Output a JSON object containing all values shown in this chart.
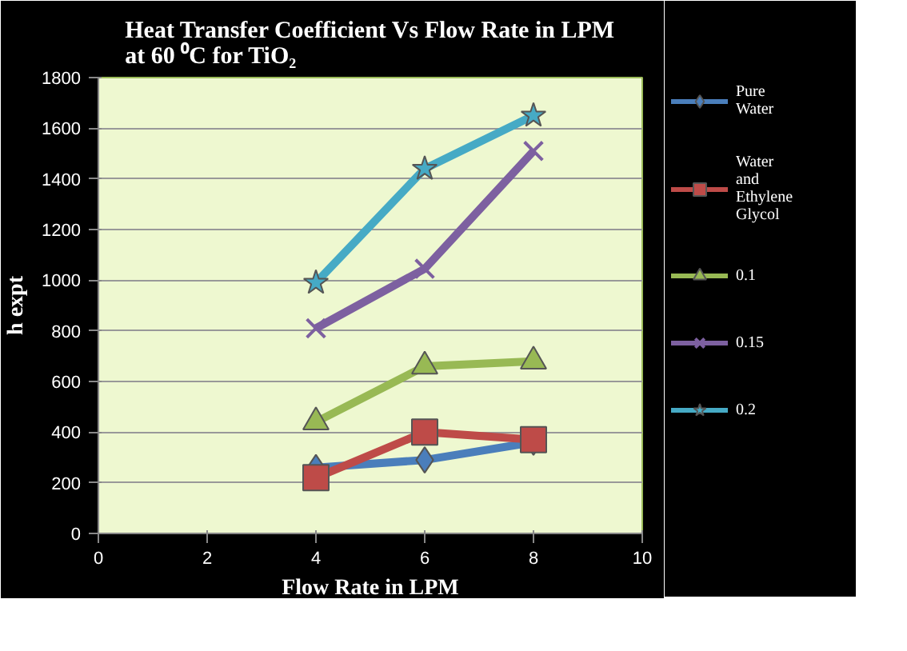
{
  "chart_data": {
    "type": "line",
    "title": "Heat Transfer Coefficient Vs Flow Rate in LPM at 60 ⁰C for TiO₂",
    "xlabel": "Flow Rate in LPM",
    "ylabel": "h expt",
    "x": [
      4,
      6,
      8
    ],
    "xlim": [
      0,
      10
    ],
    "xticks": [
      0,
      2,
      4,
      6,
      8,
      10
    ],
    "ylim": [
      0,
      1800
    ],
    "yticks": [
      0,
      200,
      400,
      600,
      800,
      1000,
      1200,
      1400,
      1600,
      1800
    ],
    "grid": "y",
    "legend": "right",
    "line_style": "solid",
    "series": [
      {
        "name": "Pure Water",
        "color": "#4a7ebb",
        "marker": "diamond",
        "values": [
          260,
          290,
          360
        ]
      },
      {
        "name": "Water and Ethylene Glycol",
        "color": "#be4b48",
        "marker": "square",
        "values": [
          220,
          400,
          370
        ]
      },
      {
        "name": "0.1",
        "color": "#98b954",
        "marker": "triangle",
        "values": [
          440,
          660,
          680
        ]
      },
      {
        "name": "0.15",
        "color": "#7d60a0",
        "marker": "cross",
        "values": [
          810,
          1045,
          1510
        ]
      },
      {
        "name": "0.2",
        "color": "#46aac5",
        "marker": "star",
        "values": [
          990,
          1440,
          1650
        ]
      }
    ]
  }
}
